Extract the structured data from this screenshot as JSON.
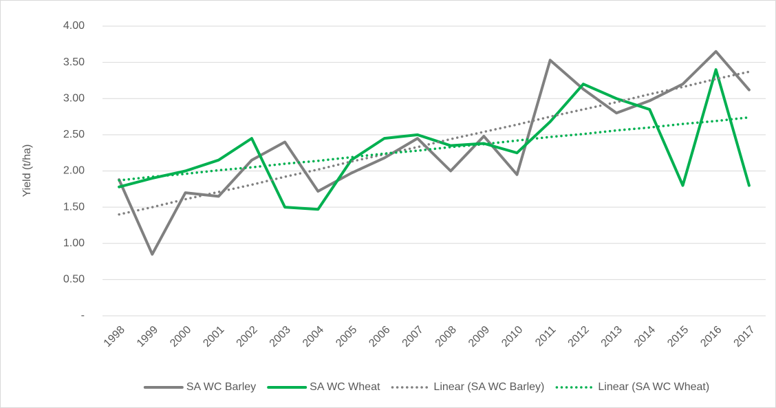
{
  "chart_data": {
    "type": "line",
    "y_label": "Yield (t/ha)",
    "categories": [
      "1998",
      "1999",
      "2000",
      "2001",
      "2002",
      "2003",
      "2004",
      "2005",
      "2006",
      "2007",
      "2008",
      "2009",
      "2010",
      "2011",
      "2012",
      "2013",
      "2014",
      "2015",
      "2016",
      "2017"
    ],
    "series": [
      {
        "name": "SA WC Barley",
        "color": "#808080",
        "dash": "solid",
        "values": [
          1.88,
          0.85,
          1.7,
          1.65,
          2.15,
          2.4,
          1.72,
          1.97,
          2.18,
          2.45,
          2.0,
          2.48,
          1.95,
          3.53,
          3.13,
          2.8,
          2.97,
          3.2,
          3.65,
          3.12
        ]
      },
      {
        "name": "SA WC Wheat",
        "color": "#00b050",
        "dash": "solid",
        "values": [
          1.78,
          1.9,
          2.0,
          2.15,
          2.45,
          1.5,
          1.47,
          2.15,
          2.45,
          2.5,
          2.35,
          2.38,
          2.25,
          2.68,
          3.2,
          3.0,
          2.85,
          1.8,
          3.4,
          1.8
        ]
      },
      {
        "name": "Linear (SA WC Barley)",
        "color": "#808080",
        "dash": "dotted",
        "values": [
          1.4,
          1.5,
          1.61,
          1.71,
          1.81,
          1.92,
          2.02,
          2.13,
          2.23,
          2.33,
          2.44,
          2.54,
          2.64,
          2.75,
          2.85,
          2.95,
          3.06,
          3.16,
          3.27,
          3.37
        ]
      },
      {
        "name": "Linear (SA WC Wheat)",
        "color": "#00b050",
        "dash": "dotted",
        "values": [
          1.87,
          1.92,
          1.96,
          2.01,
          2.05,
          2.1,
          2.14,
          2.19,
          2.24,
          2.28,
          2.33,
          2.37,
          2.42,
          2.47,
          2.51,
          2.56,
          2.6,
          2.65,
          2.69,
          2.74
        ]
      }
    ],
    "ylim": [
      0,
      4
    ],
    "yticks": [
      {
        "value": 0,
        "label": "-"
      },
      {
        "value": 0.5,
        "label": "0.50"
      },
      {
        "value": 1,
        "label": "1.00"
      },
      {
        "value": 1.5,
        "label": "1.50"
      },
      {
        "value": 2,
        "label": "2.00"
      },
      {
        "value": 2.5,
        "label": "2.50"
      },
      {
        "value": 3,
        "label": "3.00"
      },
      {
        "value": 3.5,
        "label": "3.50"
      },
      {
        "value": 4,
        "label": "4.00"
      }
    ],
    "grid": true,
    "legend": "bottom"
  }
}
